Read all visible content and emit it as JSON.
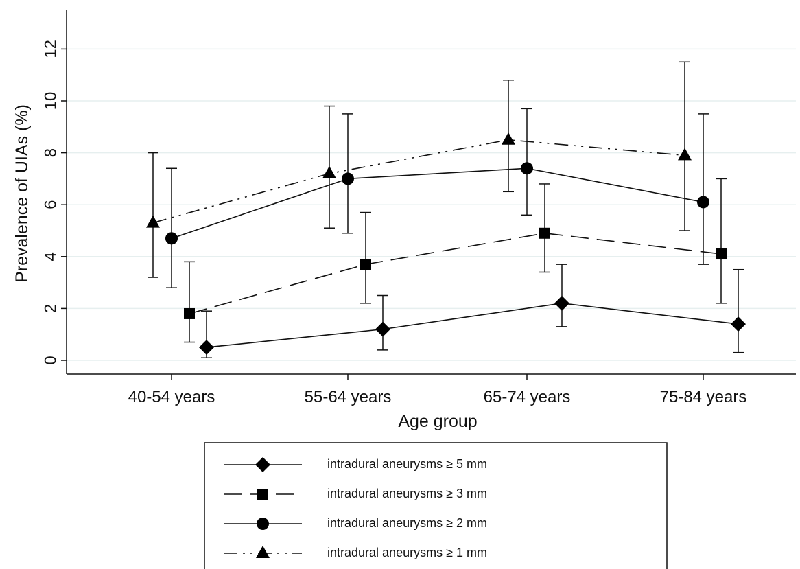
{
  "chart_data": {
    "type": "line",
    "xlabel": "Age group",
    "ylabel": "Prevalence of UIAs (%)",
    "categories": [
      "40-54 years",
      "55-64 years",
      "65-74 years",
      "75-84 years"
    ],
    "ylim": [
      0,
      13.5
    ],
    "yticks": [
      "0",
      "2",
      "4",
      "6",
      "8",
      "10",
      "12"
    ],
    "grid": "horizontal",
    "legend_position": "bottom",
    "series": [
      {
        "name": "intradural aneurysms ≥ 5 mm",
        "marker": "diamond",
        "line_style": "solid",
        "values": [
          0.5,
          1.2,
          2.2,
          1.4
        ],
        "lower": [
          0.1,
          0.4,
          1.3,
          0.3
        ],
        "upper": [
          1.9,
          2.5,
          3.7,
          3.5
        ]
      },
      {
        "name": "intradural aneurysms ≥ 3 mm",
        "marker": "square",
        "line_style": "long-dash",
        "values": [
          1.8,
          3.7,
          4.9,
          4.1
        ],
        "lower": [
          0.7,
          2.2,
          3.4,
          2.2
        ],
        "upper": [
          3.8,
          5.7,
          6.8,
          7.0
        ]
      },
      {
        "name": "intradural aneurysms ≥ 2 mm",
        "marker": "circle",
        "line_style": "solid",
        "values": [
          4.7,
          7.0,
          7.4,
          6.1
        ],
        "lower": [
          2.8,
          4.9,
          5.6,
          3.7
        ],
        "upper": [
          7.4,
          9.5,
          9.7,
          9.5
        ]
      },
      {
        "name": "intradural aneurysms ≥ 1 mm",
        "marker": "triangle",
        "line_style": "dash-dot-dot",
        "values": [
          5.3,
          7.2,
          8.5,
          7.9
        ],
        "lower": [
          3.2,
          5.1,
          6.5,
          5.0
        ],
        "upper": [
          8.0,
          9.8,
          10.8,
          11.5
        ]
      }
    ]
  }
}
